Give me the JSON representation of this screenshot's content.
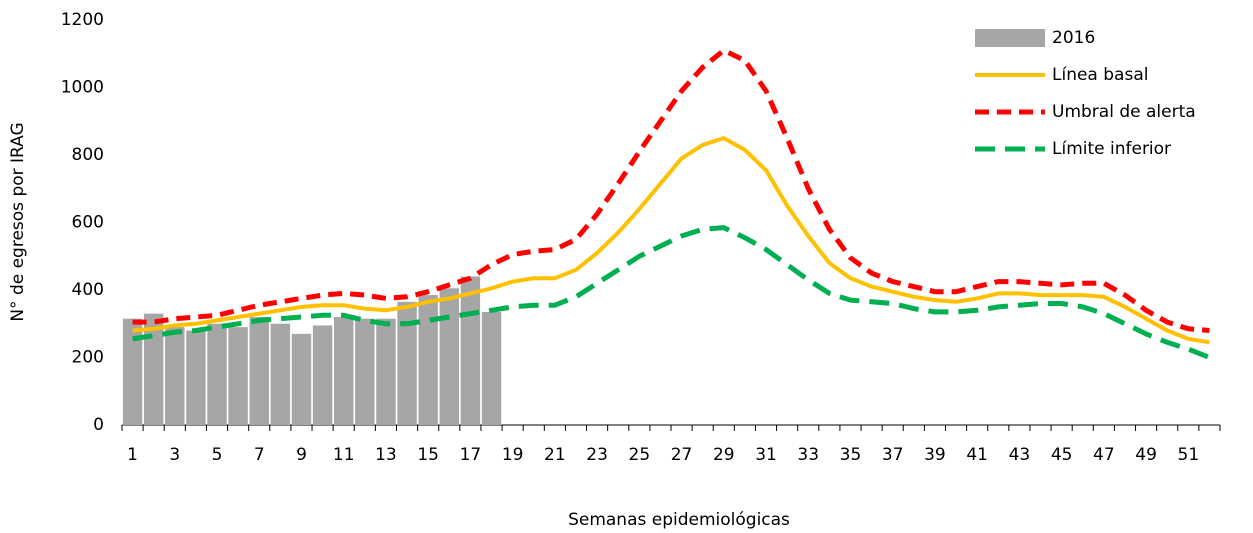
{
  "chart_data": {
    "type": "bar-line",
    "x_label": "Semanas epidemiológicas",
    "y_label": "N° de egresos por IRAG",
    "categories": [
      1,
      null,
      3,
      null,
      5,
      null,
      7,
      null,
      9,
      null,
      11,
      null,
      13,
      null,
      15,
      null,
      17,
      null,
      19,
      null,
      21,
      null,
      23,
      null,
      25,
      null,
      27,
      null,
      29,
      null,
      31,
      null,
      33,
      null,
      35,
      null,
      37,
      null,
      39,
      null,
      41,
      null,
      43,
      null,
      45,
      null,
      47,
      null,
      49,
      null,
      51,
      null
    ],
    "series": [
      {
        "name": "2016",
        "type": "bar",
        "color": "#a6a6a6",
        "values": [
          315,
          330,
          290,
          280,
          300,
          290,
          320,
          300,
          270,
          295,
          320,
          315,
          315,
          365,
          385,
          405,
          440,
          335,
          null,
          null,
          null,
          null,
          null,
          null,
          null,
          null,
          null,
          null,
          null,
          null,
          null,
          null,
          null,
          null,
          null,
          null,
          null,
          null,
          null,
          null,
          null,
          null,
          null,
          null,
          null,
          null,
          null,
          null,
          null,
          null,
          null,
          null
        ]
      },
      {
        "name": "Línea basal",
        "type": "line",
        "style": "solid",
        "color": "#ffc000",
        "values": [
          280,
          285,
          295,
          300,
          310,
          320,
          330,
          340,
          350,
          355,
          355,
          345,
          340,
          350,
          365,
          375,
          390,
          405,
          425,
          435,
          435,
          460,
          510,
          570,
          640,
          715,
          790,
          830,
          850,
          815,
          755,
          650,
          560,
          480,
          435,
          410,
          395,
          380,
          370,
          365,
          375,
          390,
          390,
          385,
          385,
          385,
          380,
          350,
          315,
          280,
          255,
          245
        ]
      },
      {
        "name": "Umbral de alerta",
        "type": "line",
        "style": "dashed",
        "color": "#ff0000",
        "values": [
          305,
          305,
          315,
          320,
          325,
          340,
          355,
          365,
          375,
          385,
          390,
          385,
          375,
          380,
          395,
          415,
          435,
          475,
          505,
          515,
          520,
          550,
          625,
          715,
          810,
          900,
          990,
          1060,
          1110,
          1080,
          990,
          850,
          700,
          580,
          495,
          450,
          425,
          410,
          395,
          395,
          410,
          425,
          425,
          420,
          415,
          420,
          420,
          385,
          340,
          305,
          285,
          280
        ]
      },
      {
        "name": "Límite inferior",
        "type": "line",
        "style": "longdash",
        "color": "#00b050",
        "values": [
          255,
          265,
          275,
          280,
          290,
          300,
          310,
          315,
          320,
          325,
          325,
          310,
          300,
          300,
          310,
          320,
          330,
          340,
          350,
          355,
          355,
          380,
          420,
          460,
          500,
          530,
          560,
          580,
          585,
          555,
          520,
          475,
          430,
          390,
          370,
          365,
          360,
          345,
          335,
          335,
          340,
          350,
          355,
          360,
          360,
          350,
          330,
          300,
          270,
          245,
          225,
          200
        ]
      }
    ],
    "ylim": [
      0,
      1200
    ],
    "yticks": [
      0,
      200,
      400,
      600,
      800,
      1000,
      1200
    ],
    "legend": "upper right"
  }
}
